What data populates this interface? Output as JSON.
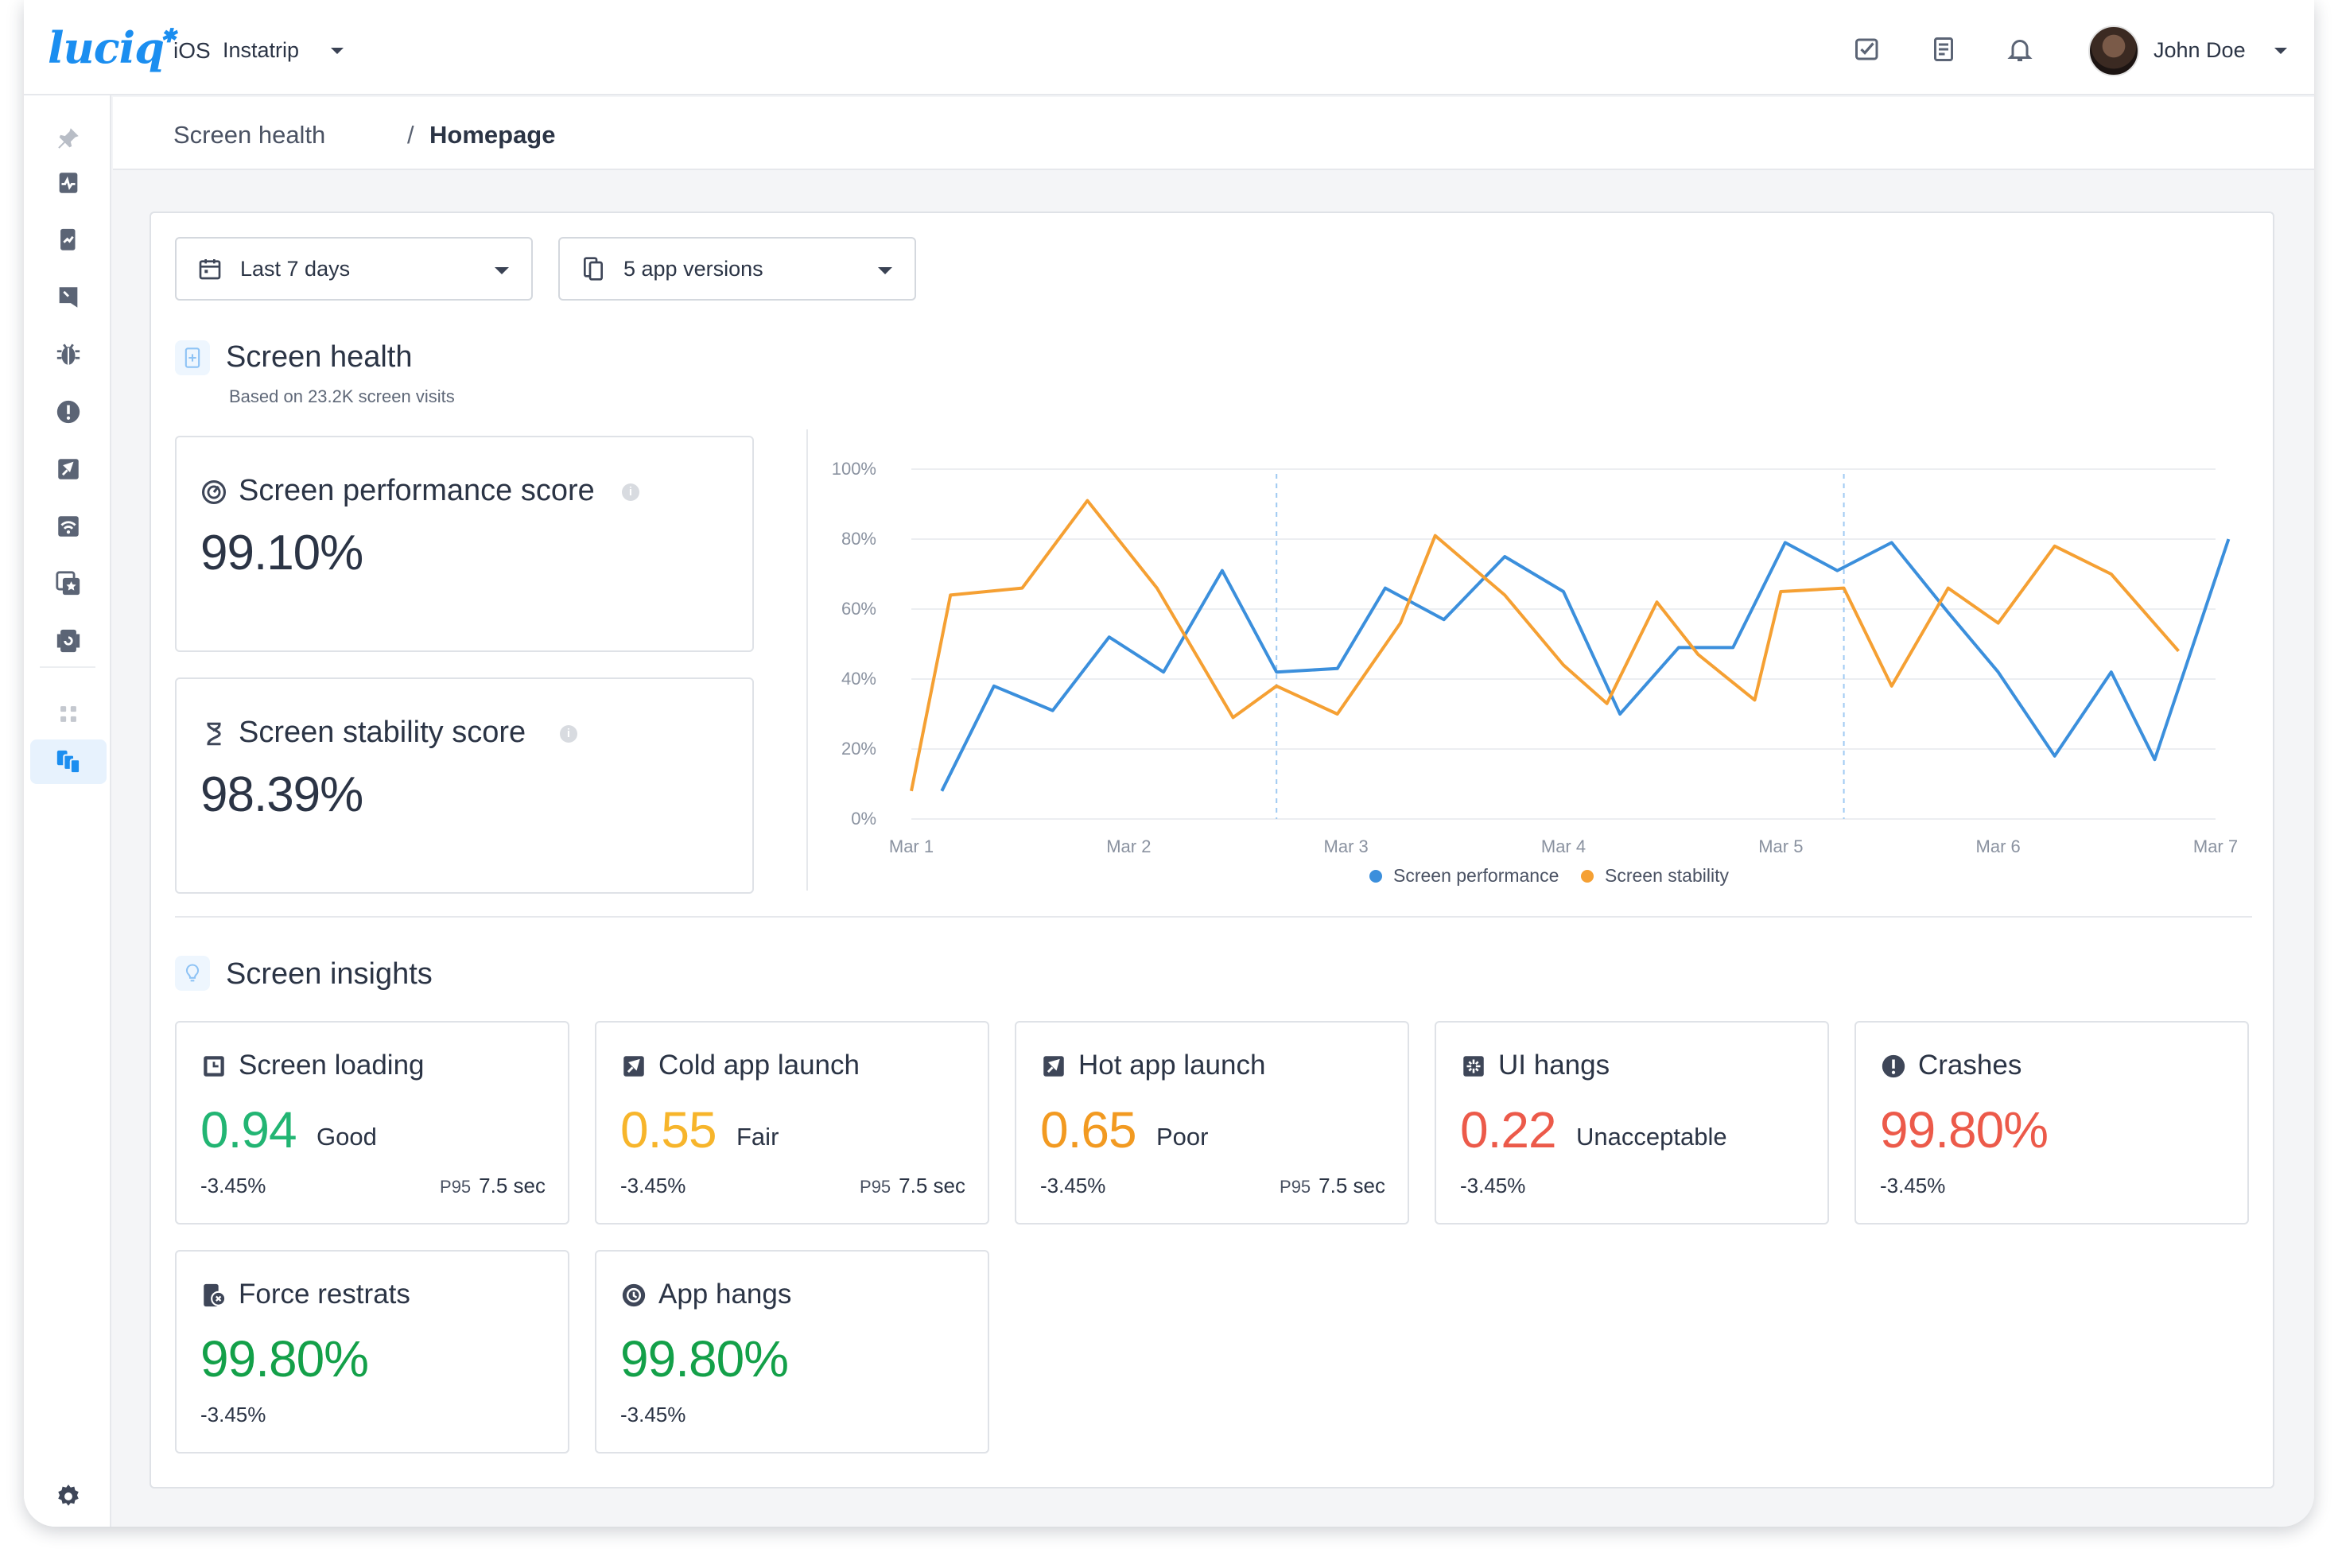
{
  "header": {
    "logo": "luciq",
    "platform": "iOS",
    "app_name": "Instatrip",
    "user_name": "John Doe",
    "icons": [
      "tasks-check-icon",
      "release-notes-icon",
      "bell-icon"
    ]
  },
  "sidebar": {
    "items": [
      "pin-icon",
      "app-health-icon",
      "app-performance-icon",
      "bug-reports-icon",
      "crashes-bug-icon",
      "alert-icon",
      "app-launch-icon",
      "network-icon",
      "surveys-icon",
      "release-icon",
      "apps-grid-icon",
      "screens-icon"
    ],
    "active": "screens-icon",
    "settings_icon": "gear-icon"
  },
  "breadcrumb": {
    "parent": "Screen health",
    "separator": "/",
    "current": "Homepage"
  },
  "filters": {
    "date_range": "Last 7 days",
    "app_versions": "5 app versions"
  },
  "screen_health": {
    "title": "Screen health",
    "subtitle": "Based on 23.2K screen visits",
    "performance": {
      "title": "Screen performance score",
      "value": "99.10%"
    },
    "stability": {
      "title": "Screen stability score",
      "value": "98.39%"
    }
  },
  "chart_data": {
    "type": "line",
    "x_ticks": [
      "Mar 1",
      "Mar 2",
      "Mar 3",
      "Mar 4",
      "Mar 5",
      "Mar 6",
      "Mar 7"
    ],
    "y_ticks": [
      "100%",
      "80%",
      "60%",
      "40%",
      "20%",
      "0%"
    ],
    "ylim": [
      0,
      100
    ],
    "grid": true,
    "legend_position": "bottom-center",
    "markers_at": [
      1.68,
      4.29
    ],
    "series": [
      {
        "name": "Screen performance",
        "color": "#3b8fdc",
        "points": [
          [
            0.14,
            8
          ],
          [
            0.38,
            38
          ],
          [
            0.65,
            31
          ],
          [
            0.91,
            52
          ],
          [
            1.16,
            42
          ],
          [
            1.43,
            71
          ],
          [
            1.68,
            42
          ],
          [
            1.96,
            43
          ],
          [
            2.18,
            66
          ],
          [
            2.45,
            57
          ],
          [
            2.73,
            75
          ],
          [
            3.0,
            65
          ],
          [
            3.26,
            30
          ],
          [
            3.53,
            49
          ],
          [
            3.78,
            49
          ],
          [
            4.02,
            79
          ],
          [
            4.26,
            71
          ],
          [
            4.51,
            79
          ],
          [
            4.77,
            59
          ],
          [
            5.0,
            42
          ],
          [
            5.26,
            18
          ],
          [
            5.52,
            42
          ],
          [
            5.72,
            17
          ],
          [
            6.06,
            80
          ]
        ]
      },
      {
        "name": "Screen stability",
        "color": "#f5a033",
        "points": [
          [
            0.0,
            8
          ],
          [
            0.18,
            64
          ],
          [
            0.51,
            66
          ],
          [
            0.81,
            91
          ],
          [
            1.13,
            66
          ],
          [
            1.48,
            29
          ],
          [
            1.68,
            38
          ],
          [
            1.96,
            30
          ],
          [
            2.25,
            56
          ],
          [
            2.41,
            81
          ],
          [
            2.73,
            64
          ],
          [
            3.0,
            44
          ],
          [
            3.2,
            33
          ],
          [
            3.43,
            62
          ],
          [
            3.62,
            47
          ],
          [
            3.88,
            34
          ],
          [
            4.0,
            65
          ],
          [
            4.29,
            66
          ],
          [
            4.51,
            38
          ],
          [
            4.77,
            66
          ],
          [
            5.0,
            56
          ],
          [
            5.26,
            78
          ],
          [
            5.52,
            70
          ],
          [
            5.83,
            48
          ]
        ]
      }
    ]
  },
  "screen_insights": {
    "title": "Screen insights",
    "cards": [
      {
        "title": "Screen loading",
        "value": "0.94",
        "rating": "Good",
        "delta": "-3.45%",
        "p95_label": "P95",
        "p95_value": "7.5 sec",
        "color": "#22b573"
      },
      {
        "title": "Cold app launch",
        "value": "0.55",
        "rating": "Fair",
        "delta": "-3.45%",
        "p95_label": "P95",
        "p95_value": "7.5 sec",
        "color": "#f7b52b"
      },
      {
        "title": "Hot app launch",
        "value": "0.65",
        "rating": "Poor",
        "delta": "-3.45%",
        "p95_label": "P95",
        "p95_value": "7.5 sec",
        "color": "#f29a21"
      },
      {
        "title": "UI hangs",
        "value": "0.22",
        "rating": "Unacceptable",
        "delta": "-3.45%",
        "color": "#ec5a4a"
      },
      {
        "title": "Crashes",
        "value": "99.80%",
        "delta": "-3.45%",
        "color": "#ec5a4a"
      },
      {
        "title": "Force restrats",
        "value": "99.80%",
        "delta": "-3.45%",
        "color": "#13a049"
      },
      {
        "title": "App hangs",
        "value": "99.80%",
        "delta": "-3.45%",
        "color": "#13a049"
      }
    ]
  }
}
